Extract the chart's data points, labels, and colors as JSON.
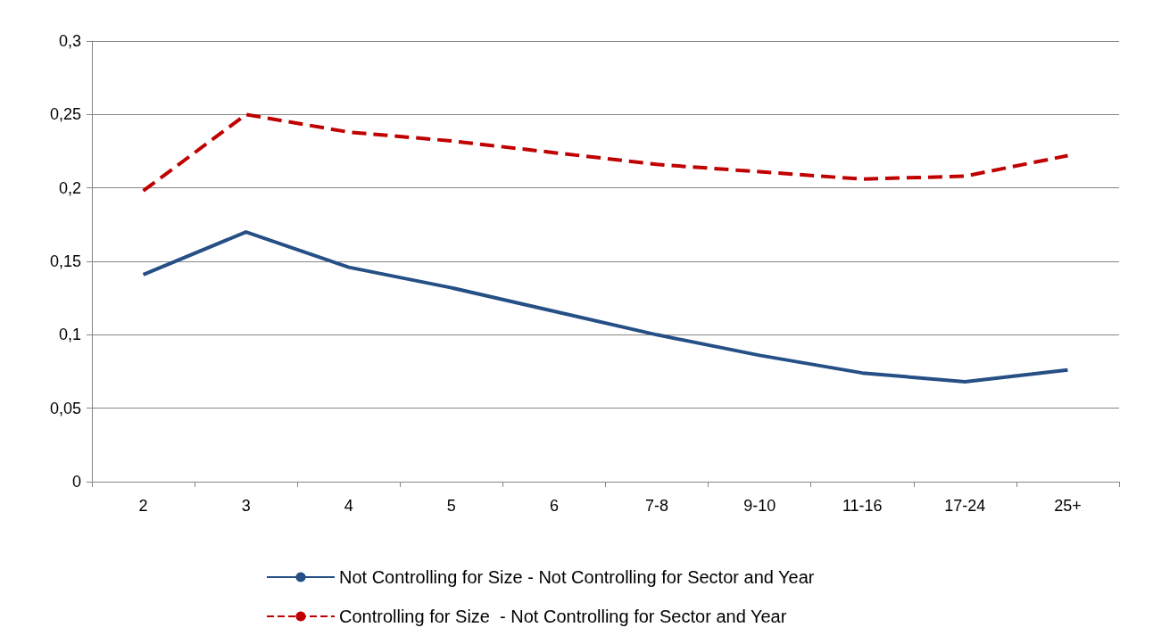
{
  "chart_data": {
    "type": "line",
    "categories": [
      "2",
      "3",
      "4",
      "5",
      "6",
      "7-8",
      "9-10",
      "11-16",
      "17-24",
      "25+"
    ],
    "series": [
      {
        "name": "Not Controlling for Size - Not Controlling for Sector and Year",
        "color": "#254f85",
        "line_style": "solid",
        "values": [
          0.141,
          0.17,
          0.146,
          0.132,
          0.116,
          0.1,
          0.086,
          0.074,
          0.068,
          0.076
        ]
      },
      {
        "name": "Controlling for Size  - Not Controlling for Sector and Year",
        "color": "#c00000",
        "line_style": "dashed",
        "values": [
          0.198,
          0.25,
          0.238,
          0.232,
          0.224,
          0.216,
          0.211,
          0.206,
          0.208,
          0.222
        ]
      }
    ],
    "ylim": [
      0,
      0.3
    ],
    "yticks": [
      {
        "value": 0,
        "label": "0"
      },
      {
        "value": 0.05,
        "label": "0,05"
      },
      {
        "value": 0.1,
        "label": "0,1"
      },
      {
        "value": 0.15,
        "label": "0,15"
      },
      {
        "value": 0.2,
        "label": "0,2"
      },
      {
        "value": 0.25,
        "label": "0,25"
      },
      {
        "value": 0.3,
        "label": "0,3"
      }
    ],
    "grid": "y",
    "legend": "bottom",
    "marker": "none"
  }
}
